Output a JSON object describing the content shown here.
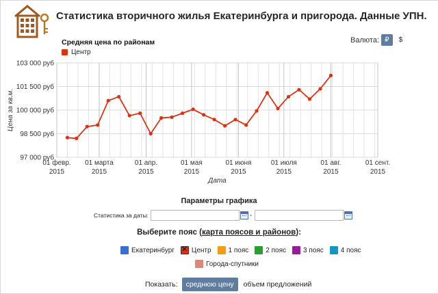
{
  "header": {
    "title": "Статистика вторичного жилья Екатеринбурга и пригорода. Данные УПН.",
    "logo_icon": "house-key-logo-icon"
  },
  "currency": {
    "label": "Валюта:",
    "options": [
      "₽",
      "$"
    ],
    "selected": "₽"
  },
  "chart_data": {
    "type": "line",
    "title": "Средняя цена по районам",
    "xlabel": "Дата",
    "ylabel": "Цена за кв.м.",
    "ylim": [
      97000,
      103000
    ],
    "yticks": [
      "103 000 руб",
      "101 500 руб",
      "100 000 руб",
      "98 500 руб",
      "97 000 руб"
    ],
    "xticks": [
      {
        "line1": "01 февр.",
        "line2": "2015"
      },
      {
        "line1": "01 марта",
        "line2": "2015"
      },
      {
        "line1": "01 апр.",
        "line2": "2015"
      },
      {
        "line1": "01 мая",
        "line2": "2015"
      },
      {
        "line1": "01 июня",
        "line2": "2015"
      },
      {
        "line1": "01 июля",
        "line2": "2015"
      },
      {
        "line1": "01 авг.",
        "line2": "2015"
      },
      {
        "line1": "01 сент.",
        "line2": "2015"
      }
    ],
    "x_range": [
      "2015-02-01",
      "2015-09-01"
    ],
    "grid": true,
    "color": "#dd3211",
    "series": [
      {
        "name": "Центр",
        "points": [
          {
            "x": "2015-02-08",
            "y": 98250
          },
          {
            "x": "2015-02-14",
            "y": 98200
          },
          {
            "x": "2015-02-21",
            "y": 98950
          },
          {
            "x": "2015-02-28",
            "y": 99050
          },
          {
            "x": "2015-03-07",
            "y": 100600
          },
          {
            "x": "2015-03-14",
            "y": 100850
          },
          {
            "x": "2015-03-21",
            "y": 99650
          },
          {
            "x": "2015-03-28",
            "y": 99800
          },
          {
            "x": "2015-04-04",
            "y": 98500
          },
          {
            "x": "2015-04-11",
            "y": 99500
          },
          {
            "x": "2015-04-18",
            "y": 99550
          },
          {
            "x": "2015-04-25",
            "y": 99800
          },
          {
            "x": "2015-05-02",
            "y": 100050
          },
          {
            "x": "2015-05-09",
            "y": 99700
          },
          {
            "x": "2015-05-16",
            "y": 99400
          },
          {
            "x": "2015-05-23",
            "y": 99000
          },
          {
            "x": "2015-05-30",
            "y": 99400
          },
          {
            "x": "2015-06-06",
            "y": 99050
          },
          {
            "x": "2015-06-13",
            "y": 99950
          },
          {
            "x": "2015-06-20",
            "y": 101100
          },
          {
            "x": "2015-06-27",
            "y": 100100
          },
          {
            "x": "2015-07-04",
            "y": 100850
          },
          {
            "x": "2015-07-11",
            "y": 101300
          },
          {
            "x": "2015-07-18",
            "y": 100700
          },
          {
            "x": "2015-07-25",
            "y": 101350
          },
          {
            "x": "2015-08-01",
            "y": 102200
          }
        ]
      }
    ]
  },
  "params": {
    "title": "Параметры графика",
    "dates_label": "Статистика за даты:",
    "date_from": "",
    "date_to": "",
    "separator": "-"
  },
  "belts": {
    "title_prefix": "Выберите пояс (",
    "title_link": "карта поясов и районов",
    "title_suffix": "):",
    "items": [
      {
        "label": "Екатеринбург",
        "color": "#3a6fd2",
        "checked": false
      },
      {
        "label": "Центр",
        "color": "#dd3211",
        "checked": true
      },
      {
        "label": "1 пояс",
        "color": "#f59c12",
        "checked": false
      },
      {
        "label": "2 пояс",
        "color": "#27a02e",
        "checked": false
      },
      {
        "label": "3 пояс",
        "color": "#9a1a9a",
        "checked": false
      },
      {
        "label": "4 пояс",
        "color": "#1296c2",
        "checked": false
      },
      {
        "label": "Города-спутники",
        "color": "#e0867a",
        "checked": false
      }
    ]
  },
  "show": {
    "label": "Показать:",
    "selected": "среднюю цену",
    "other": "объем предложений"
  }
}
